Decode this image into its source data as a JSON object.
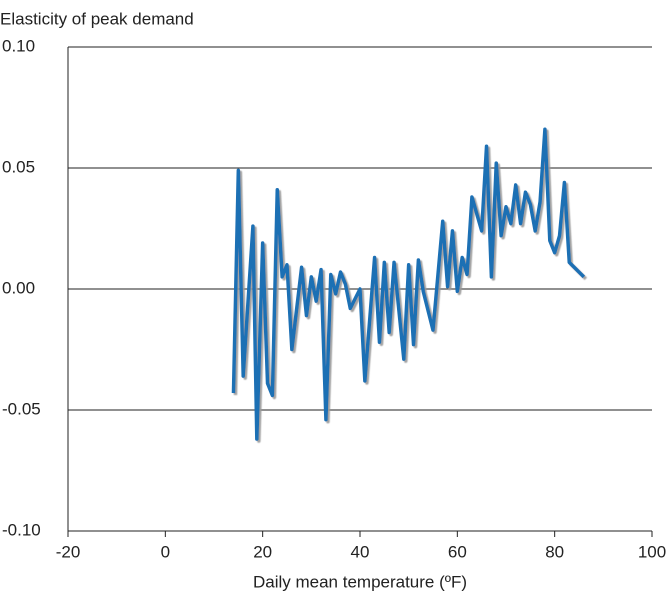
{
  "chart_data": {
    "type": "line",
    "y_label": "Elasticity of peak demand",
    "x_label": "Daily mean temperature (ºF)",
    "x": [
      14,
      15,
      16,
      18,
      18.8,
      20,
      21,
      22,
      23,
      24,
      25,
      26,
      28,
      29,
      30,
      31,
      32,
      33,
      34,
      35,
      36,
      37,
      38,
      40,
      41,
      43,
      44,
      45,
      46,
      47,
      49,
      50,
      51,
      52,
      53,
      55,
      57,
      58,
      59,
      60,
      61,
      62,
      63,
      65,
      66,
      67,
      68,
      69,
      70,
      71,
      72,
      73,
      74,
      75,
      76,
      77,
      78,
      79,
      80,
      81,
      82,
      83,
      86
    ],
    "series": [
      {
        "color": "#1f6fb4",
        "values": [
          -0.043,
          0.049,
          -0.036,
          0.026,
          -0.062,
          0.019,
          -0.039,
          -0.044,
          0.041,
          0.005,
          0.01,
          -0.025,
          0.009,
          -0.011,
          0.005,
          -0.005,
          0.008,
          -0.054,
          0.006,
          -0.002,
          0.007,
          0.002,
          -0.008,
          0.0,
          -0.038,
          0.013,
          -0.022,
          0.011,
          -0.018,
          0.011,
          -0.029,
          0.01,
          -0.023,
          0.012,
          -0.001,
          -0.017,
          0.028,
          0.001,
          0.024,
          -0.001,
          0.013,
          0.006,
          0.038,
          0.024,
          0.059,
          0.005,
          0.052,
          0.022,
          0.034,
          0.027,
          0.043,
          0.027,
          0.04,
          0.035,
          0.024,
          0.036,
          0.066,
          0.02,
          0.015,
          0.022,
          0.044,
          0.011,
          0.005
        ]
      }
    ],
    "xlim": [
      -20,
      100
    ],
    "xticks": [
      -20,
      0,
      20,
      40,
      60,
      80,
      100
    ],
    "ylim": [
      -0.1,
      0.1
    ],
    "yticks": [
      {
        "value": -0.1,
        "label": "-0.10"
      },
      {
        "value": -0.05,
        "label": "-0.05"
      },
      {
        "value": 0,
        "label": "0.00"
      },
      {
        "value": 0.05,
        "label": "0.05"
      },
      {
        "value": 0.1,
        "label": "0.10"
      }
    ],
    "grid": true
  }
}
